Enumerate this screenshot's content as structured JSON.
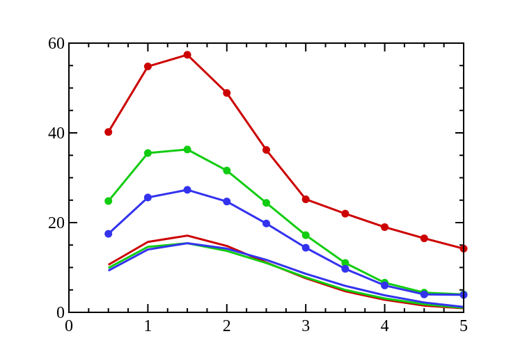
{
  "chart_data": {
    "type": "line",
    "title": "",
    "xlabel": "",
    "ylabel": "",
    "xlim": [
      0,
      5
    ],
    "ylim": [
      0,
      60
    ],
    "grid": false,
    "x_ticks": [
      "0",
      "1",
      "2",
      "3",
      "4",
      "5"
    ],
    "y_ticks": [
      "0",
      "20",
      "40",
      "60"
    ],
    "x_minor_step": 0.25,
    "y_minor_step": 5,
    "x": [
      0.5,
      1,
      1.5,
      2,
      2.5,
      3,
      3.5,
      4,
      4.5,
      5
    ],
    "series": [
      {
        "color": "#cc0000",
        "markers": true,
        "values": [
          40.2,
          54.8,
          57.4,
          48.9,
          36.2,
          25.2,
          22.0,
          19.0,
          16.5,
          14.2
        ]
      },
      {
        "color": "#11cc11",
        "markers": true,
        "values": [
          24.8,
          35.5,
          36.3,
          31.6,
          24.4,
          17.2,
          11.0,
          6.6,
          4.4,
          4.0
        ]
      },
      {
        "color": "#3333ee",
        "markers": true,
        "values": [
          17.5,
          25.6,
          27.3,
          24.7,
          19.8,
          14.4,
          9.7,
          6.0,
          4.0,
          3.9
        ]
      },
      {
        "color": "#cc0000",
        "markers": false,
        "values": [
          10.6,
          15.7,
          17.1,
          14.8,
          11.1,
          7.6,
          4.7,
          2.8,
          1.5,
          0.9
        ]
      },
      {
        "color": "#11cc11",
        "markers": false,
        "values": [
          9.9,
          14.6,
          15.4,
          13.7,
          11.0,
          7.8,
          5.0,
          3.1,
          1.8,
          1.0
        ]
      },
      {
        "color": "#3333ee",
        "markers": false,
        "values": [
          9.3,
          14.0,
          15.4,
          14.2,
          11.7,
          8.6,
          5.9,
          3.8,
          2.2,
          1.2
        ]
      }
    ]
  }
}
